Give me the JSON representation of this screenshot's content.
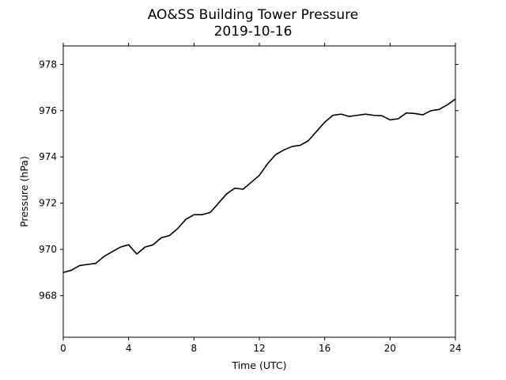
{
  "chart_data": {
    "type": "line",
    "title": "AO&SS Building Tower Pressure",
    "subtitle": "2019-10-16",
    "xlabel": "Time (UTC)",
    "ylabel": "Pressure (hPa)",
    "xlim": [
      0,
      24
    ],
    "ylim": [
      966.2,
      978.8
    ],
    "xticks": [
      0,
      4,
      8,
      12,
      16,
      20,
      24
    ],
    "yticks": [
      968,
      970,
      972,
      974,
      976,
      978
    ],
    "grid": false,
    "legend": false,
    "line_color": "#000000",
    "series": [
      {
        "x": [
          0,
          0.5,
          1,
          1.5,
          2,
          2.5,
          3,
          3.5,
          4,
          4.5,
          5,
          5.5,
          6,
          6.5,
          7,
          7.5,
          8,
          8.5,
          9,
          9.5,
          10,
          10.5,
          11,
          11.5,
          12,
          12.5,
          13,
          13.5,
          14,
          14.5,
          15,
          15.5,
          16,
          16.5,
          17,
          17.5,
          18,
          18.5,
          19,
          19.5,
          20,
          20.5,
          21,
          21.5,
          22,
          22.5,
          23,
          23.5,
          24
        ],
        "values": [
          969.0,
          969.1,
          969.3,
          969.35,
          969.4,
          969.7,
          969.9,
          970.1,
          970.2,
          969.8,
          970.1,
          970.2,
          970.5,
          970.6,
          970.9,
          971.3,
          971.5,
          971.5,
          971.6,
          972.0,
          972.4,
          972.65,
          972.6,
          972.9,
          973.2,
          973.7,
          974.1,
          974.3,
          974.45,
          974.5,
          974.7,
          975.1,
          975.5,
          975.8,
          975.85,
          975.75,
          975.8,
          975.85,
          975.8,
          975.78,
          975.6,
          975.65,
          975.9,
          975.88,
          975.82,
          976.0,
          976.05,
          976.25,
          976.5
        ]
      }
    ]
  }
}
